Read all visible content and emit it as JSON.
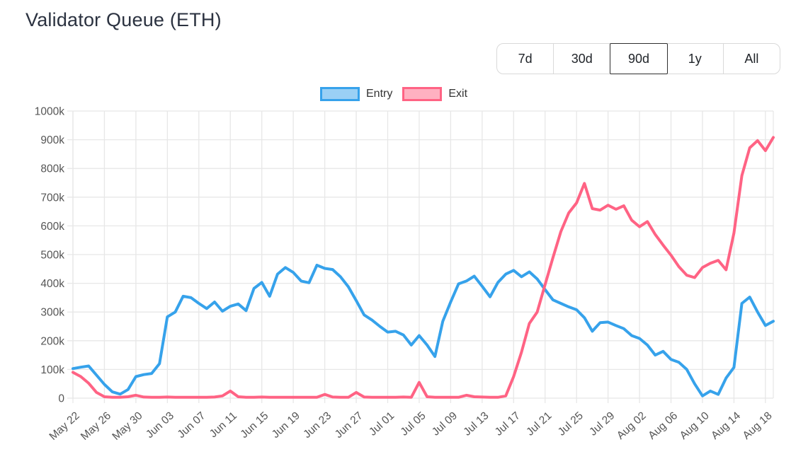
{
  "page": {
    "title": "Validator Queue (ETH)"
  },
  "range_selector": {
    "options": [
      "7d",
      "30d",
      "90d",
      "1y",
      "All"
    ],
    "selected": "90d"
  },
  "legend": {
    "items": [
      {
        "label": "Entry",
        "line_color": "#36a2eb",
        "fill_color": "#9ad0f5"
      },
      {
        "label": "Exit",
        "line_color": "#ff6384",
        "fill_color": "#ffb1c1"
      }
    ]
  },
  "chart_data": {
    "type": "line",
    "title": "Validator Queue (ETH)",
    "values_unit": "thousands (k)",
    "y_axis": {
      "min": 0,
      "max": 1000,
      "tick_step": 100,
      "tick_labels": [
        "0",
        "100k",
        "200k",
        "300k",
        "400k",
        "500k",
        "600k",
        "700k",
        "800k",
        "900k",
        "1000k"
      ]
    },
    "grid": true,
    "legend_position": "top",
    "x_tick_every": 4,
    "x_tick_labels": [
      "May 22",
      "May 26",
      "May 30",
      "Jun 03",
      "Jun 07",
      "Jun 11",
      "Jun 15",
      "Jun 19",
      "Jun 23",
      "Jun 27",
      "Jul 01",
      "Jul 05",
      "Jul 09",
      "Jul 13",
      "Jul 17",
      "Jul 21",
      "Jul 25",
      "Jul 29",
      "Aug 02",
      "Aug 06",
      "Aug 10",
      "Aug 14",
      "Aug 18"
    ],
    "x": [
      "May 22",
      "May 23",
      "May 24",
      "May 25",
      "May 26",
      "May 27",
      "May 28",
      "May 29",
      "May 30",
      "May 31",
      "Jun 01",
      "Jun 02",
      "Jun 03",
      "Jun 04",
      "Jun 05",
      "Jun 06",
      "Jun 07",
      "Jun 08",
      "Jun 09",
      "Jun 10",
      "Jun 11",
      "Jun 12",
      "Jun 13",
      "Jun 14",
      "Jun 15",
      "Jun 16",
      "Jun 17",
      "Jun 18",
      "Jun 19",
      "Jun 20",
      "Jun 21",
      "Jun 22",
      "Jun 23",
      "Jun 24",
      "Jun 25",
      "Jun 26",
      "Jun 27",
      "Jun 28",
      "Jun 29",
      "Jun 30",
      "Jul 01",
      "Jul 02",
      "Jul 03",
      "Jul 04",
      "Jul 05",
      "Jul 06",
      "Jul 07",
      "Jul 08",
      "Jul 09",
      "Jul 10",
      "Jul 11",
      "Jul 12",
      "Jul 13",
      "Jul 14",
      "Jul 15",
      "Jul 16",
      "Jul 17",
      "Jul 18",
      "Jul 19",
      "Jul 20",
      "Jul 21",
      "Jul 22",
      "Jul 23",
      "Jul 24",
      "Jul 25",
      "Jul 26",
      "Jul 27",
      "Jul 28",
      "Jul 29",
      "Jul 30",
      "Jul 31",
      "Aug 01",
      "Aug 02",
      "Aug 03",
      "Aug 04",
      "Aug 05",
      "Aug 06",
      "Aug 07",
      "Aug 08",
      "Aug 09",
      "Aug 10",
      "Aug 11",
      "Aug 12",
      "Aug 13",
      "Aug 14",
      "Aug 15",
      "Aug 16",
      "Aug 17",
      "Aug 18",
      "Aug 19"
    ],
    "series": [
      {
        "name": "Entry",
        "color": "#36a2eb",
        "values": [
          103,
          108,
          112,
          80,
          48,
          22,
          14,
          30,
          75,
          82,
          86,
          120,
          283,
          300,
          355,
          350,
          330,
          312,
          335,
          303,
          320,
          328,
          305,
          382,
          403,
          355,
          432,
          455,
          438,
          408,
          402,
          463,
          452,
          448,
          423,
          388,
          340,
          290,
          272,
          250,
          230,
          233,
          220,
          185,
          218,
          185,
          145,
          268,
          335,
          398,
          408,
          425,
          390,
          353,
          403,
          432,
          445,
          423,
          440,
          415,
          378,
          342,
          330,
          318,
          308,
          280,
          233,
          263,
          265,
          253,
          242,
          218,
          208,
          185,
          150,
          163,
          135,
          125,
          100,
          50,
          8,
          25,
          13,
          70,
          107,
          330,
          352,
          300,
          253,
          268
        ]
      },
      {
        "name": "Exit",
        "color": "#ff6384",
        "values": [
          90,
          75,
          52,
          20,
          5,
          3,
          3,
          5,
          10,
          4,
          3,
          3,
          4,
          3,
          3,
          3,
          3,
          3,
          4,
          8,
          25,
          5,
          3,
          3,
          4,
          3,
          3,
          3,
          3,
          3,
          3,
          3,
          13,
          4,
          3,
          3,
          20,
          4,
          3,
          3,
          3,
          3,
          4,
          3,
          55,
          5,
          3,
          3,
          3,
          3,
          10,
          5,
          4,
          3,
          3,
          8,
          75,
          160,
          260,
          300,
          395,
          490,
          580,
          645,
          680,
          748,
          660,
          655,
          672,
          658,
          670,
          620,
          597,
          615,
          570,
          533,
          498,
          458,
          428,
          420,
          455,
          470,
          480,
          447,
          575,
          775,
          872,
          897,
          862,
          908
        ]
      }
    ]
  },
  "colors": {
    "grid": "#e7e7e7",
    "tick_text": "#555555",
    "title_text": "#2b3240",
    "button_border": "#d9d9d9",
    "selected_button_border": "#2f2f2f"
  }
}
